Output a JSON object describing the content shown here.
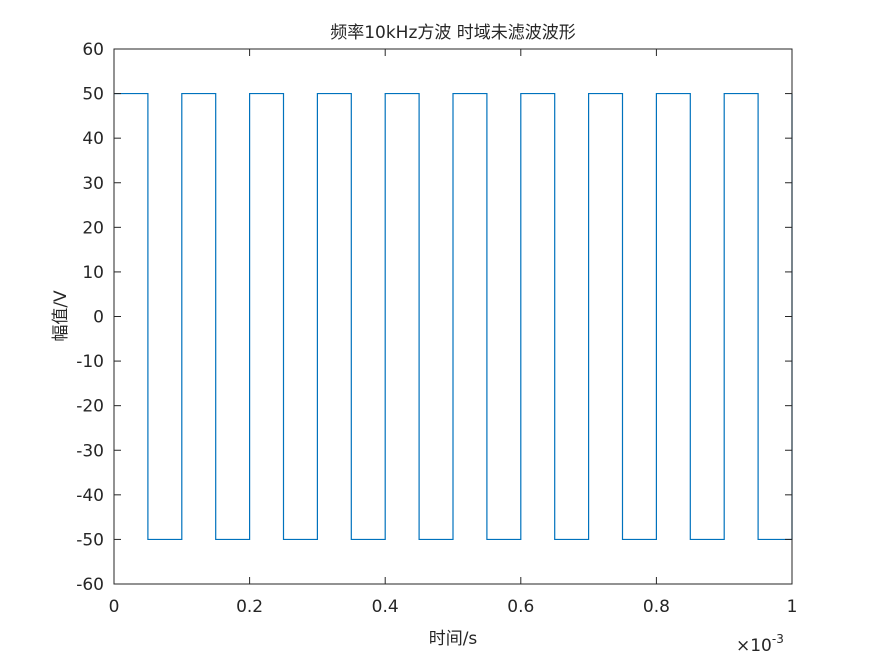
{
  "chart_data": {
    "type": "line",
    "title": "频率10kHz方波 时域未滤波波形",
    "xlabel": "时间/s",
    "ylabel": "幅值/V",
    "x_multiplier_label": "×10",
    "x_multiplier_exponent": "-3",
    "xlim": [
      0,
      0.001
    ],
    "ylim": [
      -60,
      60
    ],
    "x_ticks": [
      0,
      0.0002,
      0.0004,
      0.0006,
      0.0008,
      0.001
    ],
    "x_tick_labels": [
      "0",
      "0.2",
      "0.4",
      "0.6",
      "0.8",
      "1"
    ],
    "y_ticks": [
      -60,
      -50,
      -40,
      -30,
      -20,
      -10,
      0,
      10,
      20,
      30,
      40,
      50,
      60
    ],
    "y_tick_labels": [
      "-60",
      "-50",
      "-40",
      "-30",
      "-20",
      "-10",
      "0",
      "10",
      "20",
      "30",
      "40",
      "50",
      "60"
    ],
    "grid": false,
    "legend": "none",
    "series": [
      {
        "color": "#0072BD",
        "waveform": "square",
        "frequency_hz": 10000,
        "amplitude_v": 50,
        "x": [
          0,
          5e-05,
          5e-05,
          0.0001,
          0.0001,
          0.00015,
          0.00015,
          0.0002,
          0.0002,
          0.00025,
          0.00025,
          0.0003,
          0.0003,
          0.00035,
          0.00035,
          0.0004,
          0.0004,
          0.00045,
          0.00045,
          0.0005,
          0.0005,
          0.00055,
          0.00055,
          0.0006,
          0.0006,
          0.00065,
          0.00065,
          0.0007,
          0.0007,
          0.00075,
          0.00075,
          0.0008,
          0.0008,
          0.00085,
          0.00085,
          0.0009,
          0.0009,
          0.00095,
          0.00095,
          0.001,
          0.001
        ],
        "y": [
          50,
          50,
          -50,
          -50,
          50,
          50,
          -50,
          -50,
          50,
          50,
          -50,
          -50,
          50,
          50,
          -50,
          -50,
          50,
          50,
          -50,
          -50,
          50,
          50,
          -50,
          -50,
          50,
          50,
          -50,
          -50,
          50,
          50,
          -50,
          -50,
          50,
          50,
          -50,
          -50,
          50,
          50,
          -50,
          -50,
          50
        ]
      }
    ]
  }
}
